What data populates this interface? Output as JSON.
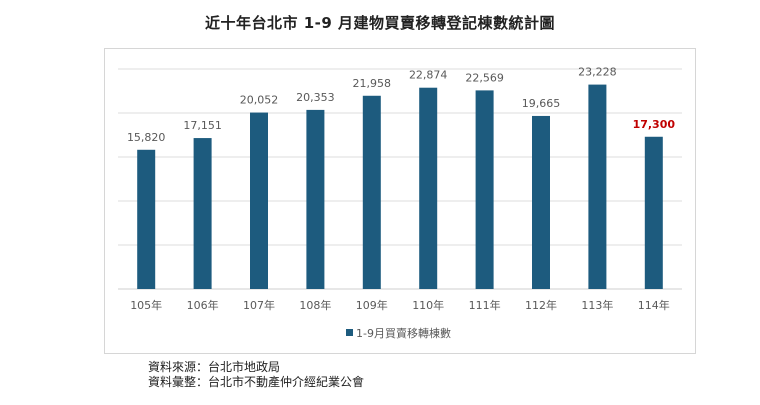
{
  "chart_data": {
    "type": "bar",
    "title": "近十年台北市 1-9 月建物買賣移轉登記棟數統計圖",
    "categories": [
      "105年",
      "106年",
      "107年",
      "108年",
      "109年",
      "110年",
      "111年",
      "112年",
      "113年",
      "114年"
    ],
    "series": [
      {
        "name": "1-9月買賣移轉棟數",
        "values": [
          15820,
          17151,
          20052,
          20353,
          21958,
          22874,
          22569,
          19665,
          23228,
          17300
        ],
        "labels": [
          "15,820",
          "17,151",
          "20,052",
          "20,353",
          "21,958",
          "22,874",
          "22,569",
          "19,665",
          "23,228",
          "17,300"
        ]
      }
    ],
    "ylim": [
      0,
      25000
    ],
    "grid": true,
    "legend": "bottom",
    "bar_color": "#1d5b7e",
    "highlight_index": 9,
    "highlight_label_color": "#c00000"
  },
  "source": {
    "line1": "資料來源：台北市地政局",
    "line2": "資料彙整：台北市不動產仲介經紀業公會"
  }
}
